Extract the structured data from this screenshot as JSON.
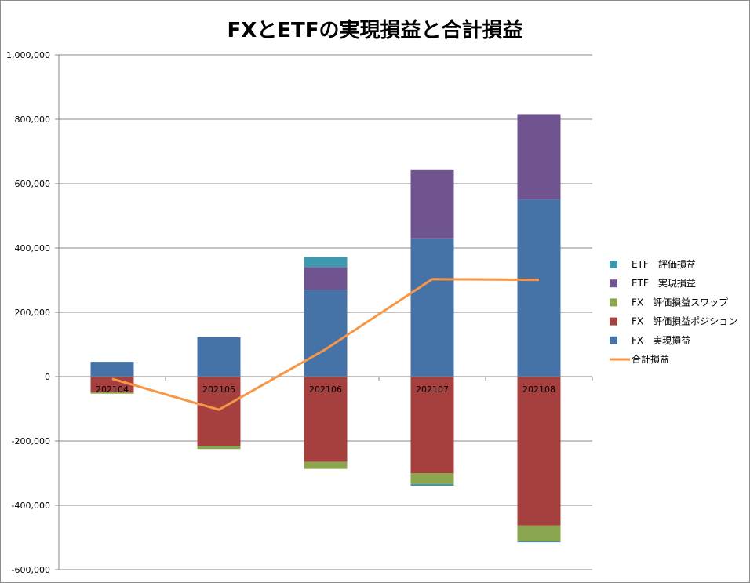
{
  "chart_data": {
    "type": "bar",
    "stacked": true,
    "title": "FXとETFの実現損益と合計損益",
    "categories": [
      "202104",
      "202105",
      "202106",
      "202107",
      "202108"
    ],
    "series": [
      {
        "name": "ETF　評価損益",
        "type": "bar",
        "color": "#3e98b0",
        "values": [
          0,
          0,
          32000,
          -5000,
          -3000
        ]
      },
      {
        "name": "ETF　実現損益",
        "type": "bar",
        "color": "#6f548f",
        "values": [
          0,
          0,
          70000,
          212000,
          265000
        ]
      },
      {
        "name": "FX　評価損益スワップ",
        "type": "bar",
        "color": "#8aa64f",
        "values": [
          -5000,
          -10000,
          -22000,
          -34000,
          -49000
        ]
      },
      {
        "name": "FX　評価損益ポジション",
        "type": "bar",
        "color": "#a6403e",
        "values": [
          -48000,
          -215000,
          -265000,
          -300000,
          -463000
        ]
      },
      {
        "name": "FX　実現損益",
        "type": "bar",
        "color": "#4572a7",
        "values": [
          46000,
          122000,
          270000,
          430000,
          551000
        ]
      },
      {
        "name": "合計損益",
        "type": "line",
        "color": "#f79646",
        "values": [
          -7000,
          -103000,
          85000,
          303000,
          301000
        ]
      }
    ],
    "ylim": [
      -600000,
      1000000
    ],
    "ytick_labels": [
      "1,000,000",
      "800,000",
      "600,000",
      "400,000",
      "200,000",
      "0",
      "-200,000",
      "-400,000",
      "-600,000"
    ],
    "negative_label_color": "#ff0000",
    "grid": true,
    "legend": "right"
  }
}
